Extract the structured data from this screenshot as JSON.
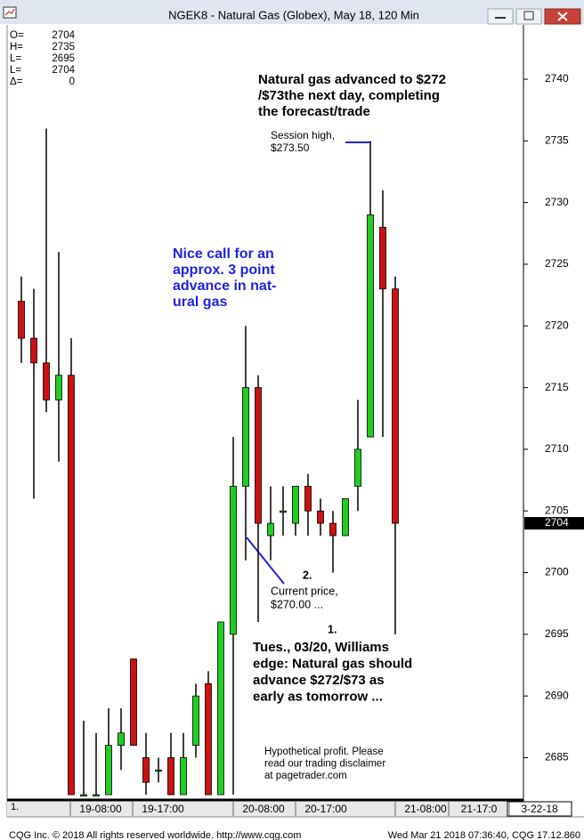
{
  "chart_data": {
    "type": "candlestick",
    "title": "NGEK8 - Natural Gas (Globex), May 18, 120 Min",
    "info": {
      "labels": [
        "O=",
        "H=",
        "L=",
        "L=",
        "Δ="
      ],
      "values": [
        2704,
        2735,
        2695,
        2704,
        0
      ]
    },
    "open": [
      2722,
      2719,
      2717,
      2714,
      2716,
      2682,
      2682,
      2682,
      2686,
      2693,
      2685,
      2684,
      2685,
      2682,
      2686,
      2691,
      2682,
      2695,
      2707,
      2715,
      2703,
      2705,
      2704,
      2707,
      2705,
      2704,
      2703,
      2707,
      2711,
      2728,
      2723
    ],
    "high": [
      2724,
      2723,
      2736,
      2726,
      2719,
      2688,
      2687,
      2689,
      2689,
      2693,
      2687,
      2685,
      2687,
      2687,
      2691,
      2692,
      2696,
      2711,
      2720,
      2716,
      2707,
      2707,
      2707,
      2708,
      2706,
      2705,
      2706,
      2714,
      2735,
      2731,
      2724
    ],
    "low": [
      2717,
      2706,
      2713,
      2709,
      2682,
      2682,
      2682,
      2682,
      2684,
      2686,
      2682,
      2683,
      2682,
      2682,
      2685,
      2682,
      2682,
      2682,
      2701,
      2696,
      2701,
      2703,
      2703,
      2703,
      2703,
      2700,
      2703,
      2705,
      2711,
      2711,
      2695
    ],
    "close": [
      2719,
      2717,
      2714,
      2716,
      2682,
      2682,
      2682,
      2686,
      2687,
      2686,
      2683,
      2684,
      2682,
      2685,
      2690,
      2682,
      2696,
      2707,
      2715,
      2704,
      2704,
      2705,
      2707,
      2705,
      2704,
      2703,
      2706,
      2710,
      2729,
      2723,
      2704
    ],
    "up_color": "#22cc22",
    "down_color": "#cc1111",
    "ylim": [
      2681.5,
      2744.4
    ],
    "yticks": [
      2685,
      2690,
      2695,
      2700,
      2705,
      2710,
      2715,
      2720,
      2725,
      2730,
      2735,
      2740
    ],
    "current_price": 2704,
    "time_labels": [
      "19-08:00",
      "19-17:00",
      "20-08:00",
      "20-17:00",
      "21-08:00",
      "21-17:0",
      "3-22-18"
    ],
    "corner_label": "1.",
    "annotations": [
      {
        "lines": [
          "Natural gas advanced to  $272",
          "/$73the next day, completing",
          "the forecast/trade"
        ],
        "color": "#000000"
      },
      {
        "lines": [
          "Session high,",
          "$273.50"
        ],
        "color": "#000000"
      },
      {
        "lines": [
          "Nice call for an",
          "approx. 3 point",
          "advance in nat-",
          "ural gas"
        ],
        "color": "#2222dd"
      },
      {
        "lines": [
          "2."
        ],
        "color": "#000000"
      },
      {
        "lines": [
          "Current price,",
          "$270.00 ..."
        ],
        "color": "#000000"
      },
      {
        "lines": [
          "1."
        ],
        "color": "#000000"
      },
      {
        "lines": [
          "Tues., 03/20, Williams",
          "edge: Natural gas should",
          "advance $272/$73 as",
          "early as tomorrow ..."
        ],
        "color": "#000000"
      },
      {
        "lines": [
          "Hypothetical profit.  Please",
          "read our trading disclaimer",
          "at pagetrader.com"
        ],
        "color": "#000000"
      }
    ]
  },
  "footer": {
    "left": "CQG Inc. © 2018 All rights reserved worldwide. http://www.cqg.com",
    "right": "Wed Mar 21 2018 07:36:40, CQG 17.12.860"
  }
}
